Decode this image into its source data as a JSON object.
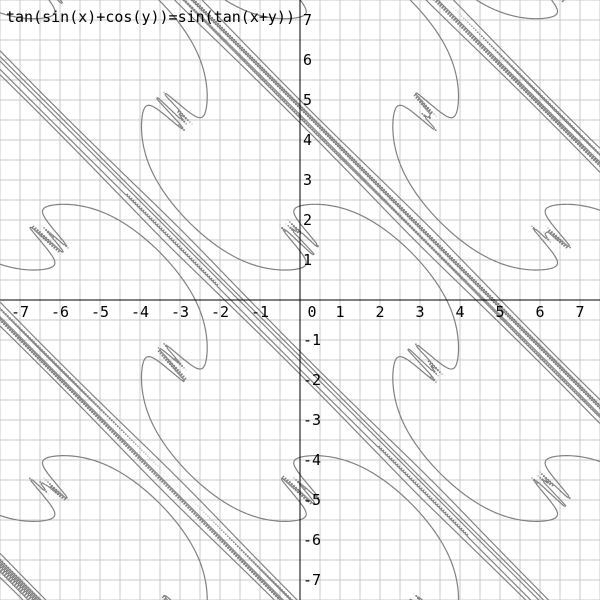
{
  "chart_data": {
    "type": "implicit-plot",
    "title": "tan(sin(x)+cos(y))=sin(tan(x+y))",
    "equation": {
      "lhs": "tan(sin(x)+cos(y))",
      "rhs": "sin(tan(x+y))"
    },
    "xlim": [
      -7.5,
      7.5
    ],
    "ylim": [
      -7.5,
      7.5
    ],
    "x_ticks": [
      -7,
      -6,
      -5,
      -4,
      -3,
      -2,
      -1,
      0,
      1,
      2,
      3,
      4,
      5,
      6,
      7
    ],
    "x_tick_labels": [
      "-7",
      "-6",
      "-5",
      "-4",
      "-3",
      "-2",
      "-1",
      "0",
      "1",
      "2",
      "3",
      "4",
      "5",
      "6",
      "7"
    ],
    "y_ticks": [
      -7,
      -6,
      -5,
      -4,
      -3,
      -2,
      -1,
      1,
      2,
      3,
      4,
      5,
      6,
      7
    ],
    "y_tick_labels": [
      "-7",
      "-6",
      "-5",
      "-4",
      "-3",
      "-2",
      "-1",
      "1",
      "2",
      "3",
      "4",
      "5",
      "6",
      "7"
    ],
    "grid": true,
    "grid_step": 0.5,
    "colors": {
      "background": "#ffffff",
      "grid": "#c8c8c8",
      "axes": "#000000",
      "curve": "#808080"
    }
  }
}
